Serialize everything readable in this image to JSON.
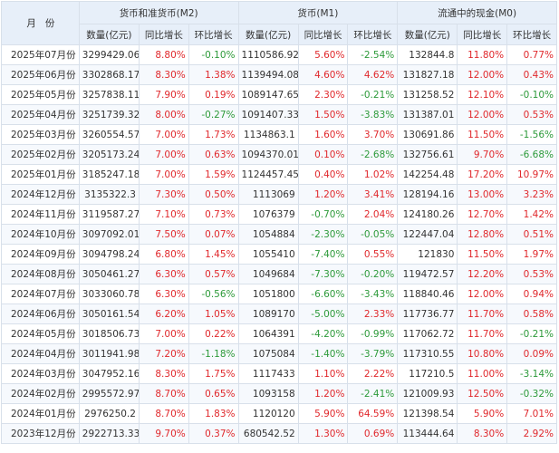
{
  "header": {
    "month": "月份",
    "m2_title": "货币和准货币(M2)",
    "m1_title": "货币(M1)",
    "m0_title": "流通中的现金(M0)",
    "qty": "数量(亿元)",
    "yoy": "同比增长",
    "mom": "环比增长"
  },
  "colors": {
    "up": "#e0282c",
    "down": "#2d9a3a",
    "header_bg": "#e7eff9",
    "row_alt": "#f6f9fd"
  },
  "rows": [
    {
      "month": "2025年07月份",
      "m2": "3299429.06",
      "m2_yoy": "8.80%",
      "m2_mom": "-0.10%",
      "m1": "1110586.92",
      "m1_yoy": "5.60%",
      "m1_mom": "-2.54%",
      "m0": "132844.8",
      "m0_yoy": "11.80%",
      "m0_mom": "0.77%"
    },
    {
      "month": "2025年06月份",
      "m2": "3302868.17",
      "m2_yoy": "8.30%",
      "m2_mom": "1.38%",
      "m1": "1139494.08",
      "m1_yoy": "4.60%",
      "m1_mom": "4.62%",
      "m0": "131827.18",
      "m0_yoy": "12.00%",
      "m0_mom": "0.43%"
    },
    {
      "month": "2025年05月份",
      "m2": "3257838.11",
      "m2_yoy": "7.90%",
      "m2_mom": "0.19%",
      "m1": "1089147.65",
      "m1_yoy": "2.30%",
      "m1_mom": "-0.21%",
      "m0": "131258.52",
      "m0_yoy": "12.10%",
      "m0_mom": "-0.10%"
    },
    {
      "month": "2025年04月份",
      "m2": "3251739.32",
      "m2_yoy": "8.00%",
      "m2_mom": "-0.27%",
      "m1": "1091407.33",
      "m1_yoy": "1.50%",
      "m1_mom": "-3.83%",
      "m0": "131387.01",
      "m0_yoy": "12.00%",
      "m0_mom": "0.53%"
    },
    {
      "month": "2025年03月份",
      "m2": "3260554.57",
      "m2_yoy": "7.00%",
      "m2_mom": "1.73%",
      "m1": "1134863.1",
      "m1_yoy": "1.60%",
      "m1_mom": "3.70%",
      "m0": "130691.86",
      "m0_yoy": "11.50%",
      "m0_mom": "-1.56%"
    },
    {
      "month": "2025年02月份",
      "m2": "3205173.24",
      "m2_yoy": "7.00%",
      "m2_mom": "0.63%",
      "m1": "1094370.01",
      "m1_yoy": "0.10%",
      "m1_mom": "-2.68%",
      "m0": "132756.61",
      "m0_yoy": "9.70%",
      "m0_mom": "-6.68%"
    },
    {
      "month": "2025年01月份",
      "m2": "3185247.18",
      "m2_yoy": "7.00%",
      "m2_mom": "1.59%",
      "m1": "1124457.45",
      "m1_yoy": "0.40%",
      "m1_mom": "1.02%",
      "m0": "142254.48",
      "m0_yoy": "17.20%",
      "m0_mom": "10.97%"
    },
    {
      "month": "2024年12月份",
      "m2": "3135322.3",
      "m2_yoy": "7.30%",
      "m2_mom": "0.50%",
      "m1": "1113069",
      "m1_yoy": "1.20%",
      "m1_mom": "3.41%",
      "m0": "128194.16",
      "m0_yoy": "13.00%",
      "m0_mom": "3.23%"
    },
    {
      "month": "2024年11月份",
      "m2": "3119587.27",
      "m2_yoy": "7.10%",
      "m2_mom": "0.73%",
      "m1": "1076379",
      "m1_yoy": "-0.70%",
      "m1_mom": "2.04%",
      "m0": "124180.26",
      "m0_yoy": "12.70%",
      "m0_mom": "1.42%"
    },
    {
      "month": "2024年10月份",
      "m2": "3097092.01",
      "m2_yoy": "7.50%",
      "m2_mom": "0.07%",
      "m1": "1054884",
      "m1_yoy": "-2.30%",
      "m1_mom": "-0.05%",
      "m0": "122447.04",
      "m0_yoy": "12.80%",
      "m0_mom": "0.51%"
    },
    {
      "month": "2024年09月份",
      "m2": "3094798.24",
      "m2_yoy": "6.80%",
      "m2_mom": "1.45%",
      "m1": "1055410",
      "m1_yoy": "-7.40%",
      "m1_mom": "0.55%",
      "m0": "121830",
      "m0_yoy": "11.50%",
      "m0_mom": "1.97%"
    },
    {
      "month": "2024年08月份",
      "m2": "3050461.27",
      "m2_yoy": "6.30%",
      "m2_mom": "0.57%",
      "m1": "1049684",
      "m1_yoy": "-7.30%",
      "m1_mom": "-0.20%",
      "m0": "119472.57",
      "m0_yoy": "12.20%",
      "m0_mom": "0.53%"
    },
    {
      "month": "2024年07月份",
      "m2": "3033060.78",
      "m2_yoy": "6.30%",
      "m2_mom": "-0.56%",
      "m1": "1051800",
      "m1_yoy": "-6.60%",
      "m1_mom": "-3.43%",
      "m0": "118840.46",
      "m0_yoy": "12.00%",
      "m0_mom": "0.94%"
    },
    {
      "month": "2024年06月份",
      "m2": "3050161.54",
      "m2_yoy": "6.20%",
      "m2_mom": "1.05%",
      "m1": "1089170",
      "m1_yoy": "-5.00%",
      "m1_mom": "2.33%",
      "m0": "117736.77",
      "m0_yoy": "11.70%",
      "m0_mom": "0.58%"
    },
    {
      "month": "2024年05月份",
      "m2": "3018506.73",
      "m2_yoy": "7.00%",
      "m2_mom": "0.22%",
      "m1": "1064391",
      "m1_yoy": "-4.20%",
      "m1_mom": "-0.99%",
      "m0": "117062.72",
      "m0_yoy": "11.70%",
      "m0_mom": "-0.21%"
    },
    {
      "month": "2024年04月份",
      "m2": "3011941.98",
      "m2_yoy": "7.20%",
      "m2_mom": "-1.18%",
      "m1": "1075084",
      "m1_yoy": "-1.40%",
      "m1_mom": "-3.79%",
      "m0": "117310.55",
      "m0_yoy": "10.80%",
      "m0_mom": "0.09%"
    },
    {
      "month": "2024年03月份",
      "m2": "3047952.16",
      "m2_yoy": "8.30%",
      "m2_mom": "1.75%",
      "m1": "1117433",
      "m1_yoy": "1.10%",
      "m1_mom": "2.22%",
      "m0": "117210.5",
      "m0_yoy": "11.00%",
      "m0_mom": "-3.14%"
    },
    {
      "month": "2024年02月份",
      "m2": "2995572.97",
      "m2_yoy": "8.70%",
      "m2_mom": "0.65%",
      "m1": "1093158",
      "m1_yoy": "1.20%",
      "m1_mom": "-2.41%",
      "m0": "121009.93",
      "m0_yoy": "12.50%",
      "m0_mom": "-0.32%"
    },
    {
      "month": "2024年01月份",
      "m2": "2976250.2",
      "m2_yoy": "8.70%",
      "m2_mom": "1.83%",
      "m1": "1120120",
      "m1_yoy": "5.90%",
      "m1_mom": "64.59%",
      "m0": "121398.54",
      "m0_yoy": "5.90%",
      "m0_mom": "7.01%"
    },
    {
      "month": "2023年12月份",
      "m2": "2922713.33",
      "m2_yoy": "9.70%",
      "m2_mom": "0.37%",
      "m1": "680542.52",
      "m1_yoy": "1.30%",
      "m1_mom": "0.69%",
      "m0": "113444.64",
      "m0_yoy": "8.30%",
      "m0_mom": "2.92%"
    }
  ]
}
